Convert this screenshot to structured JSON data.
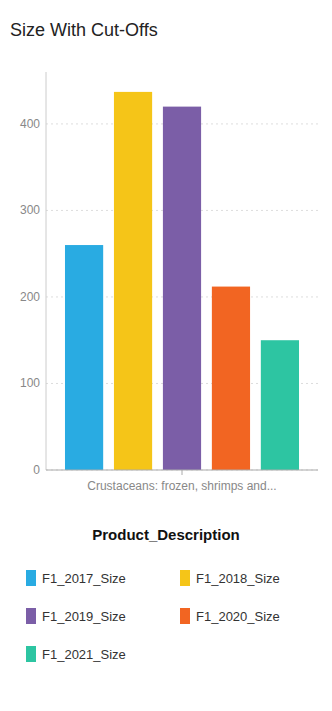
{
  "chart_data": {
    "type": "bar",
    "title": "Size With Cut-Offs",
    "categories": [
      "Crustaceans: frozen, shrimps and..."
    ],
    "series": [
      {
        "name": "F1_2017_Size",
        "color": "#29ABE2",
        "values": [
          260
        ]
      },
      {
        "name": "F1_2018_Size",
        "color": "#F5C518",
        "values": [
          437
        ]
      },
      {
        "name": "F1_2019_Size",
        "color": "#7B5EA7",
        "values": [
          420
        ]
      },
      {
        "name": "F1_2020_Size",
        "color": "#F26522",
        "values": [
          212
        ]
      },
      {
        "name": "F1_2021_Size",
        "color": "#2DC5A2",
        "values": [
          150
        ]
      }
    ],
    "legend_title": "Product_Description",
    "legend": "bottom",
    "ylim": [
      0,
      460
    ],
    "yticks": [
      0,
      100,
      200,
      300,
      400
    ],
    "grid": true
  }
}
